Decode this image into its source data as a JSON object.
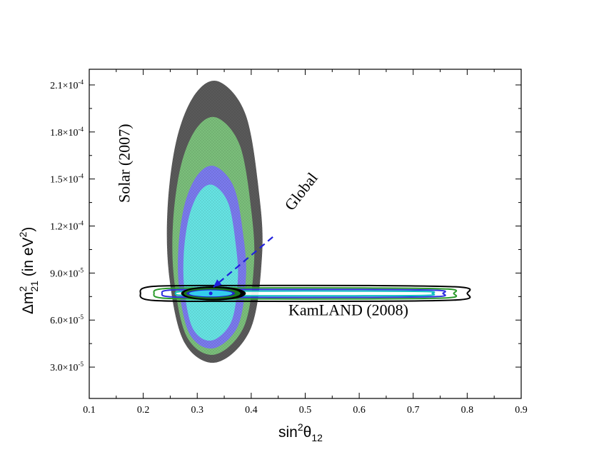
{
  "chart_data": {
    "type": "contour",
    "xlabel": {
      "main": "sin",
      "sup": "2",
      "theta": "θ",
      "sub": "12"
    },
    "ylabel": {
      "delta": "Δm",
      "sup": "2",
      "sub": "21",
      "unit_pre": " (in eV",
      "unit_sup": "2",
      "unit_post": ")"
    },
    "xlim": [
      0.1,
      0.9
    ],
    "ylim": [
      1e-05,
      0.00022
    ],
    "x_ticks": [
      {
        "value": 0.1,
        "label": "0.1"
      },
      {
        "value": 0.2,
        "label": "0.2"
      },
      {
        "value": 0.3,
        "label": "0.3"
      },
      {
        "value": 0.4,
        "label": "0.4"
      },
      {
        "value": 0.5,
        "label": "0.5"
      },
      {
        "value": 0.6,
        "label": "0.6"
      },
      {
        "value": 0.7,
        "label": "0.7"
      },
      {
        "value": 0.8,
        "label": "0.8"
      },
      {
        "value": 0.9,
        "label": "0.9"
      }
    ],
    "y_ticks": [
      {
        "value": 3e-05,
        "mant": "3.0×10",
        "exp": "-5"
      },
      {
        "value": 6e-05,
        "mant": "6.0×10",
        "exp": "-5"
      },
      {
        "value": 9e-05,
        "mant": "9.0×10",
        "exp": "-5"
      },
      {
        "value": 0.00012,
        "mant": "1.2×10",
        "exp": "-4"
      },
      {
        "value": 0.00015,
        "mant": "1.5×10",
        "exp": "-4"
      },
      {
        "value": 0.00018,
        "mant": "1.8×10",
        "exp": "-4"
      },
      {
        "value": 0.00021,
        "mant": "2.1×10",
        "exp": "-4"
      }
    ],
    "grid": false,
    "solar_regions": [
      {
        "level": 3,
        "color": "#5a5a5a",
        "x": [
          0.245,
          0.42
        ],
        "y": [
          3.3e-05,
          0.000212
        ]
      },
      {
        "level": 2,
        "color": "#7bbf7b",
        "x": [
          0.255,
          0.405
        ],
        "y": [
          3.8e-05,
          0.000189
        ]
      },
      {
        "level": 1,
        "color": "#7b7bee",
        "x": [
          0.265,
          0.39
        ],
        "y": [
          4.2e-05,
          0.000158
        ]
      },
      {
        "level": 0,
        "color": "#66e4e4",
        "x": [
          0.275,
          0.375
        ],
        "y": [
          4.7e-05,
          0.000146
        ]
      }
    ],
    "kamland_contours": [
      {
        "level": 3,
        "color": "#000000",
        "x": [
          0.195,
          0.8
        ],
        "y": [
          7.2e-05,
          8.2e-05
        ]
      },
      {
        "level": 2,
        "color": "#2a9a2a",
        "x": [
          0.22,
          0.775
        ],
        "y": [
          7.35e-05,
          8.05e-05
        ]
      },
      {
        "level": 1,
        "color": "#3030e0",
        "x": [
          0.235,
          0.755
        ],
        "y": [
          7.45e-05,
          7.95e-05
        ]
      },
      {
        "level": 0,
        "color": "#10c0c0",
        "x": [
          0.26,
          0.735
        ],
        "y": [
          7.55e-05,
          7.85e-05
        ]
      }
    ],
    "global_regions": [
      {
        "level": 3,
        "color": "#000000",
        "x": [
          0.27,
          0.39
        ],
        "y": [
          7.25e-05,
          8.15e-05
        ]
      },
      {
        "level": 2,
        "color": "#1e7a1e",
        "x": [
          0.275,
          0.38
        ],
        "y": [
          7.35e-05,
          8.05e-05
        ]
      },
      {
        "level": 1,
        "color": "#2222cc",
        "x": [
          0.28,
          0.37
        ],
        "y": [
          7.45e-05,
          7.95e-05
        ]
      },
      {
        "level": 0,
        "color": "#33ccee",
        "x": [
          0.285,
          0.365
        ],
        "y": [
          7.5e-05,
          7.9e-05
        ]
      }
    ],
    "best_fit": {
      "x": 0.325,
      "y": 7.7e-05
    },
    "annotations": {
      "solar": {
        "text": "Solar (2007)",
        "x": 0.175,
        "y": 0.00016
      },
      "kamland": {
        "text": "KamLAND (2008)",
        "x": 0.58,
        "y": 6.3e-05
      },
      "global": {
        "text": "Global",
        "x": 0.55,
        "y": 0.00015
      },
      "arrow": {
        "from": [
          0.44,
          0.000113
        ],
        "to": [
          0.33,
          8.1e-05
        ],
        "color": "#1f1fdd"
      }
    }
  }
}
